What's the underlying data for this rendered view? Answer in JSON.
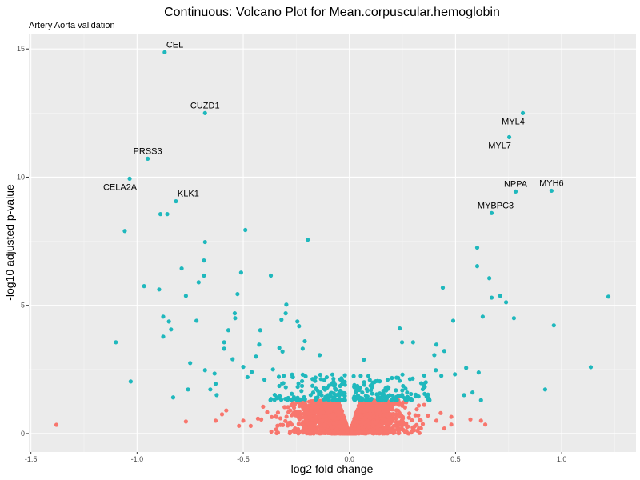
{
  "chart_data": {
    "type": "scatter",
    "title": "Continuous: Volcano Plot for Mean.corpuscular.hemoglobin",
    "subtitle": "Artery Aorta validation",
    "xlabel": "log2 fold change",
    "ylabel": "-log10 adjusted p-value",
    "xlim": [
      -1.51,
      1.35
    ],
    "ylim": [
      -0.72,
      15.6
    ],
    "x_ticks": [
      -1.5,
      -1.0,
      -0.5,
      0.0,
      0.5,
      1.0
    ],
    "x_tick_labels": [
      "-1.5",
      "-1.0",
      "-0.5",
      "0.0",
      "0.5",
      "1.0"
    ],
    "y_ticks": [
      0,
      5,
      10,
      15
    ],
    "y_tick_labels": [
      "0",
      "5",
      "10",
      "15"
    ],
    "grid": true,
    "legend": "none",
    "colors": {
      "significant": "#1fb8bd",
      "not_significant": "#f8766d",
      "panel": "#ebebeb",
      "grid": "#ffffff"
    },
    "labeled_points": [
      {
        "label": "CEL",
        "x": -0.87,
        "y": 14.87,
        "pos": "above-right"
      },
      {
        "label": "CUZD1",
        "x": -0.68,
        "y": 12.5,
        "pos": "above"
      },
      {
        "label": "PRSS3",
        "x": -0.95,
        "y": 10.72,
        "pos": "above"
      },
      {
        "label": "CELA2A",
        "x": -1.035,
        "y": 9.94,
        "pos": "below-left"
      },
      {
        "label": "KLK1",
        "x": -0.817,
        "y": 9.06,
        "pos": "above-right"
      },
      {
        "label": "MYL4",
        "x": 0.817,
        "y": 12.5,
        "pos": "below-left"
      },
      {
        "label": "MYL7",
        "x": 0.753,
        "y": 11.56,
        "pos": "below-left"
      },
      {
        "label": "NPPA",
        "x": 0.783,
        "y": 9.44,
        "pos": "above"
      },
      {
        "label": "MYH6",
        "x": 0.952,
        "y": 9.47,
        "pos": "above"
      },
      {
        "label": "MYBPC3",
        "x": 0.67,
        "y": 8.6,
        "pos": "above-left"
      }
    ],
    "significant_points": [
      [
        -0.89,
        8.56
      ],
      [
        -0.858,
        8.56
      ],
      [
        -1.058,
        7.9
      ],
      [
        -0.68,
        7.47
      ],
      [
        -0.49,
        7.94
      ],
      [
        -0.196,
        7.56
      ],
      [
        -0.685,
        6.75
      ],
      [
        -0.685,
        6.16
      ],
      [
        -0.79,
        6.44
      ],
      [
        -0.71,
        5.9
      ],
      [
        -0.51,
        6.28
      ],
      [
        -0.37,
        6.16
      ],
      [
        -0.967,
        5.75
      ],
      [
        -0.896,
        5.62
      ],
      [
        -0.77,
        5.37
      ],
      [
        -0.527,
        5.44
      ],
      [
        -0.297,
        5.03
      ],
      [
        -0.877,
        4.56
      ],
      [
        -0.85,
        4.37
      ],
      [
        -0.84,
        4.06
      ],
      [
        -0.877,
        3.78
      ],
      [
        -0.72,
        4.4
      ],
      [
        -0.54,
        4.69
      ],
      [
        -0.538,
        4.5
      ],
      [
        -0.32,
        4.44
      ],
      [
        -0.3,
        4.69
      ],
      [
        -0.245,
        4.37
      ],
      [
        -0.237,
        4.19
      ],
      [
        -1.1,
        3.56
      ],
      [
        -1.03,
        2.03
      ],
      [
        -0.57,
        4.03
      ],
      [
        -0.59,
        3.56
      ],
      [
        -0.59,
        3.31
      ],
      [
        -0.42,
        4.03
      ],
      [
        -0.425,
        3.47
      ],
      [
        -0.44,
        3.0
      ],
      [
        -0.33,
        3.34
      ],
      [
        -0.315,
        3.2
      ],
      [
        -0.14,
        3.06
      ],
      [
        -0.21,
        3.6
      ],
      [
        -0.22,
        3.31
      ],
      [
        -0.75,
        2.75
      ],
      [
        -0.83,
        1.41
      ],
      [
        -0.76,
        1.72
      ],
      [
        -0.68,
        2.47
      ],
      [
        -0.635,
        2.34
      ],
      [
        -0.63,
        1.94
      ],
      [
        -0.655,
        1.72
      ],
      [
        -0.625,
        1.5
      ],
      [
        -0.55,
        2.9
      ],
      [
        -0.5,
        2.6
      ],
      [
        -0.48,
        2.2
      ],
      [
        -0.46,
        2.4
      ],
      [
        -0.4,
        2.1
      ],
      [
        -0.36,
        2.5
      ],
      [
        -0.27,
        2.3
      ],
      [
        -0.08,
        2.3
      ],
      [
        1.22,
        5.34
      ],
      [
        0.602,
        7.25
      ],
      [
        0.602,
        6.53
      ],
      [
        0.659,
        6.06
      ],
      [
        0.44,
        5.69
      ],
      [
        0.67,
        5.3
      ],
      [
        0.71,
        5.37
      ],
      [
        0.738,
        5.12
      ],
      [
        0.489,
        4.4
      ],
      [
        0.628,
        4.56
      ],
      [
        0.775,
        4.5
      ],
      [
        0.963,
        4.22
      ],
      [
        0.237,
        4.1
      ],
      [
        0.248,
        3.56
      ],
      [
        0.3,
        3.56
      ],
      [
        0.4,
        3.06
      ],
      [
        0.447,
        3.22
      ],
      [
        0.41,
        3.47
      ],
      [
        0.55,
        2.56
      ],
      [
        1.137,
        2.59
      ],
      [
        0.922,
        1.72
      ],
      [
        0.609,
        2.38
      ],
      [
        0.497,
        2.31
      ],
      [
        0.407,
        2.47
      ],
      [
        0.433,
        2.25
      ],
      [
        0.068,
        2.88
      ],
      [
        0.18,
        2.1
      ],
      [
        0.25,
        2.3
      ],
      [
        0.36,
        2.0
      ],
      [
        0.54,
        1.5
      ],
      [
        0.58,
        1.6
      ],
      [
        0.62,
        1.3
      ]
    ],
    "significant_cloud": {
      "count": 260,
      "seed": 7,
      "x_abs_range": [
        0.02,
        0.38
      ],
      "y_range": [
        1.3,
        2.3
      ]
    },
    "not_significant_points": [
      [
        -1.38,
        0.34
      ],
      [
        -0.77,
        0.47
      ],
      [
        -0.6,
        0.75
      ],
      [
        -0.58,
        0.9
      ],
      [
        -0.63,
        0.5
      ],
      [
        -0.52,
        0.3
      ],
      [
        -0.5,
        0.5
      ],
      [
        0.48,
        0.65
      ],
      [
        0.48,
        0.35
      ],
      [
        0.57,
        0.55
      ],
      [
        0.62,
        0.5
      ],
      [
        0.64,
        0.35
      ],
      [
        0.43,
        0.8
      ],
      [
        0.41,
        0.5
      ],
      [
        0.37,
        0.7
      ]
    ],
    "not_significant_cloud": {
      "count": 1800,
      "seed": 3,
      "x_sd": 0.13,
      "y_max": 1.3
    }
  }
}
